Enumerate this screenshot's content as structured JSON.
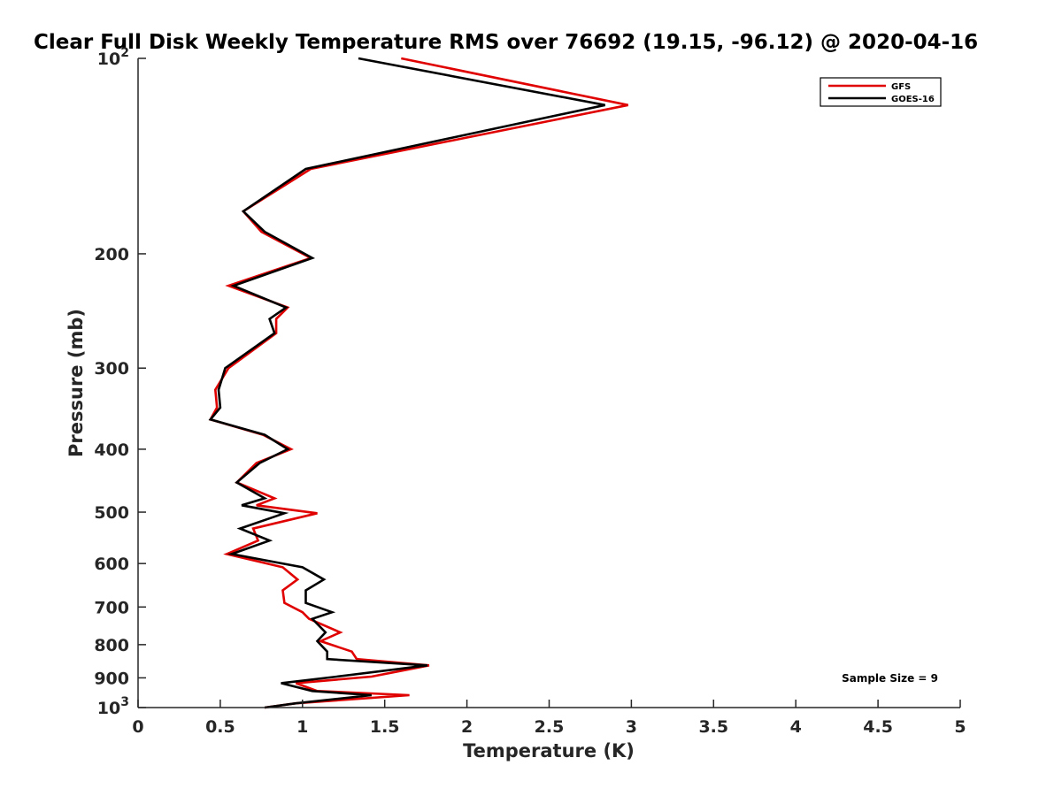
{
  "chart_data": {
    "type": "line",
    "title": "Clear Full Disk Weekly Temperature RMS over 76692 (19.15, -96.12) @ 2020-04-16",
    "xlabel": "Temperature (K)",
    "ylabel": "Pressure (mb)",
    "xlim": [
      0,
      5
    ],
    "ylim": [
      100,
      1000
    ],
    "y_scale": "log",
    "y_reversed": true,
    "grid": false,
    "legend_position": "top-right",
    "x_ticks": [
      "0",
      "0.5",
      "1",
      "1.5",
      "2",
      "2.5",
      "3",
      "3.5",
      "4",
      "4.5",
      "5"
    ],
    "x_tick_values": [
      0,
      0.5,
      1,
      1.5,
      2,
      2.5,
      3,
      3.5,
      4,
      4.5,
      5
    ],
    "y_ticks": [
      {
        "value": 100,
        "base": "10",
        "exp": "2"
      },
      {
        "value": 200,
        "label": "200"
      },
      {
        "value": 300,
        "label": "300"
      },
      {
        "value": 400,
        "label": "400"
      },
      {
        "value": 500,
        "label": "500"
      },
      {
        "value": 600,
        "label": "600"
      },
      {
        "value": 700,
        "label": "700"
      },
      {
        "value": 800,
        "label": "800"
      },
      {
        "value": 900,
        "label": "900"
      },
      {
        "value": 1000,
        "base": "10",
        "exp": "3"
      }
    ],
    "annotation": "Sample Size = 9",
    "series": [
      {
        "name": "GFS",
        "color": "#e00000",
        "points": [
          [
            1.6,
            100
          ],
          [
            2.98,
            118
          ],
          [
            1.05,
            148
          ],
          [
            0.64,
            172
          ],
          [
            0.75,
            185
          ],
          [
            1.05,
            203
          ],
          [
            0.55,
            224
          ],
          [
            0.91,
            242
          ],
          [
            0.84,
            252
          ],
          [
            0.84,
            265
          ],
          [
            0.55,
            300
          ],
          [
            0.47,
            324
          ],
          [
            0.48,
            345
          ],
          [
            0.44,
            360
          ],
          [
            0.76,
            380
          ],
          [
            0.93,
            400
          ],
          [
            0.72,
            420
          ],
          [
            0.6,
            450
          ],
          [
            0.83,
            476
          ],
          [
            0.72,
            488
          ],
          [
            1.09,
            502
          ],
          [
            0.7,
            530
          ],
          [
            0.73,
            553
          ],
          [
            0.54,
            580
          ],
          [
            0.88,
            608
          ],
          [
            0.97,
            635
          ],
          [
            0.88,
            660
          ],
          [
            0.89,
            690
          ],
          [
            1.0,
            713
          ],
          [
            1.04,
            730
          ],
          [
            1.23,
            766
          ],
          [
            1.11,
            790
          ],
          [
            1.3,
            820
          ],
          [
            1.33,
            842
          ],
          [
            1.77,
            861
          ],
          [
            1.42,
            896
          ],
          [
            0.96,
            917
          ],
          [
            1.09,
            943
          ],
          [
            1.65,
            957
          ],
          [
            0.96,
            985
          ],
          [
            0.77,
            1000
          ]
        ]
      },
      {
        "name": "GOES-16",
        "color": "#000000",
        "points": [
          [
            1.34,
            100
          ],
          [
            2.84,
            118
          ],
          [
            1.02,
            148
          ],
          [
            0.64,
            172
          ],
          [
            0.77,
            185
          ],
          [
            1.06,
            203
          ],
          [
            0.58,
            224
          ],
          [
            0.9,
            242
          ],
          [
            0.8,
            252
          ],
          [
            0.83,
            265
          ],
          [
            0.53,
            300
          ],
          [
            0.49,
            324
          ],
          [
            0.5,
            345
          ],
          [
            0.44,
            360
          ],
          [
            0.77,
            380
          ],
          [
            0.91,
            400
          ],
          [
            0.74,
            420
          ],
          [
            0.6,
            450
          ],
          [
            0.77,
            476
          ],
          [
            0.63,
            488
          ],
          [
            0.89,
            502
          ],
          [
            0.62,
            530
          ],
          [
            0.8,
            553
          ],
          [
            0.57,
            580
          ],
          [
            1.0,
            608
          ],
          [
            1.13,
            635
          ],
          [
            1.02,
            660
          ],
          [
            1.02,
            690
          ],
          [
            1.18,
            713
          ],
          [
            1.06,
            730
          ],
          [
            1.14,
            766
          ],
          [
            1.09,
            790
          ],
          [
            1.15,
            820
          ],
          [
            1.15,
            842
          ],
          [
            1.76,
            861
          ],
          [
            1.21,
            896
          ],
          [
            0.87,
            917
          ],
          [
            1.06,
            943
          ],
          [
            1.42,
            957
          ],
          [
            0.96,
            985
          ],
          [
            0.77,
            1000
          ]
        ]
      }
    ]
  }
}
